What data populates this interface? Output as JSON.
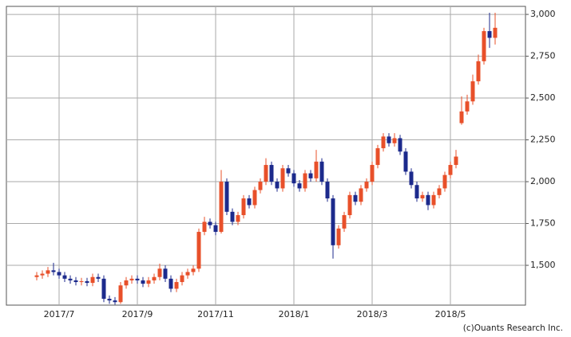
{
  "chart_data": {
    "type": "candlestick",
    "credit": "(c)Ouants Research Inc.",
    "up_color": "#e8502a",
    "down_color": "#1c2a8c",
    "grid": true,
    "categories": [
      null,
      null,
      null,
      null,
      "2017/7",
      null,
      null,
      null,
      null,
      null,
      null,
      null,
      null,
      null,
      null,
      null,
      null,
      null,
      "2017/9",
      null,
      null,
      null,
      null,
      null,
      null,
      null,
      null,
      null,
      null,
      null,
      null,
      null,
      "2017/11",
      null,
      null,
      null,
      null,
      null,
      null,
      null,
      null,
      null,
      null,
      null,
      null,
      null,
      "2018/1",
      null,
      null,
      null,
      null,
      null,
      null,
      null,
      null,
      null,
      null,
      null,
      null,
      null,
      "2018/3",
      null,
      null,
      null,
      null,
      null,
      null,
      null,
      null,
      null,
      null,
      null,
      null,
      null,
      "2018/5",
      null,
      null,
      null,
      null,
      null,
      null,
      null,
      null
    ],
    "open": [
      1430,
      1440,
      1450,
      1470,
      1460,
      1440,
      1420,
      1410,
      1400,
      1405,
      1395,
      1430,
      1420,
      1300,
      1290,
      1280,
      1380,
      1410,
      1420,
      1410,
      1390,
      1410,
      1430,
      1480,
      1420,
      1360,
      1400,
      1440,
      1460,
      1480,
      1700,
      1760,
      1740,
      1700,
      2000,
      1820,
      1760,
      1800,
      1900,
      1860,
      1950,
      2000,
      2100,
      2000,
      1960,
      2080,
      2050,
      1990,
      1960,
      2050,
      2020,
      2120,
      2000,
      1900,
      1620,
      1720,
      1800,
      1920,
      1880,
      1960,
      2000,
      2100,
      2200,
      2270,
      2230,
      2260,
      2180,
      2060,
      1980,
      1900,
      1920,
      1860,
      1920,
      1960,
      2040,
      2100,
      2350,
      2420,
      2480,
      2600,
      2720,
      2900,
      2860
    ],
    "high": [
      1460,
      1470,
      1490,
      1515,
      1480,
      1460,
      1440,
      1430,
      1425,
      1425,
      1450,
      1450,
      1440,
      1320,
      1310,
      1400,
      1430,
      1440,
      1440,
      1430,
      1430,
      1450,
      1510,
      1500,
      1440,
      1420,
      1460,
      1480,
      1500,
      1720,
      1790,
      1780,
      1760,
      2070,
      2020,
      1840,
      1820,
      1920,
      1920,
      1970,
      2020,
      2140,
      2120,
      2020,
      2100,
      2100,
      2070,
      2010,
      2070,
      2070,
      2190,
      2140,
      2020,
      1920,
      1740,
      1820,
      1940,
      1940,
      1980,
      2020,
      2120,
      2220,
      2290,
      2290,
      2290,
      2280,
      2200,
      2080,
      2000,
      1940,
      1940,
      1940,
      1980,
      2060,
      2120,
      2190,
      2510,
      2520,
      2640,
      2760,
      2920,
      3010,
      3010
    ],
    "low": [
      1410,
      1420,
      1430,
      1440,
      1420,
      1400,
      1390,
      1380,
      1380,
      1375,
      1375,
      1400,
      1280,
      1270,
      1265,
      1270,
      1360,
      1390,
      1390,
      1370,
      1370,
      1390,
      1410,
      1400,
      1340,
      1340,
      1380,
      1420,
      1440,
      1460,
      1680,
      1720,
      1680,
      1690,
      1800,
      1740,
      1740,
      1780,
      1840,
      1840,
      1930,
      1980,
      1980,
      1940,
      1940,
      2030,
      1970,
      1940,
      1940,
      2000,
      2000,
      1980,
      1880,
      1540,
      1600,
      1700,
      1780,
      1860,
      1860,
      1940,
      1980,
      2080,
      2180,
      2210,
      2210,
      2160,
      2040,
      1960,
      1880,
      1880,
      1830,
      1840,
      1900,
      1940,
      2020,
      2080,
      2340,
      2400,
      2460,
      2580,
      2700,
      2800,
      2820
    ],
    "close": [
      1440,
      1450,
      1470,
      1460,
      1440,
      1420,
      1410,
      1400,
      1405,
      1395,
      1430,
      1420,
      1300,
      1290,
      1280,
      1380,
      1410,
      1420,
      1410,
      1390,
      1410,
      1430,
      1480,
      1420,
      1360,
      1400,
      1440,
      1460,
      1480,
      1700,
      1760,
      1740,
      1700,
      2000,
      1820,
      1760,
      1800,
      1900,
      1860,
      1950,
      2000,
      2100,
      2000,
      1960,
      2080,
      2050,
      1990,
      1960,
      2050,
      2020,
      2120,
      2000,
      1900,
      1620,
      1720,
      1800,
      1920,
      1880,
      1960,
      2000,
      2100,
      2200,
      2270,
      2230,
      2260,
      2180,
      2060,
      1980,
      1900,
      1920,
      1860,
      1920,
      1960,
      2040,
      2100,
      2150,
      2420,
      2480,
      2600,
      2720,
      2900,
      2860,
      2920
    ],
    "ylim": [
      1262,
      3048
    ],
    "yticks": [
      {
        "value": 1500,
        "label": "1,500"
      },
      {
        "value": 1750,
        "label": "1,750"
      },
      {
        "value": 2000,
        "label": "2,000"
      },
      {
        "value": 2250,
        "label": "2,250"
      },
      {
        "value": 2500,
        "label": "2,500"
      },
      {
        "value": 2750,
        "label": "2,750"
      },
      {
        "value": 3000,
        "label": "3,000"
      }
    ]
  }
}
